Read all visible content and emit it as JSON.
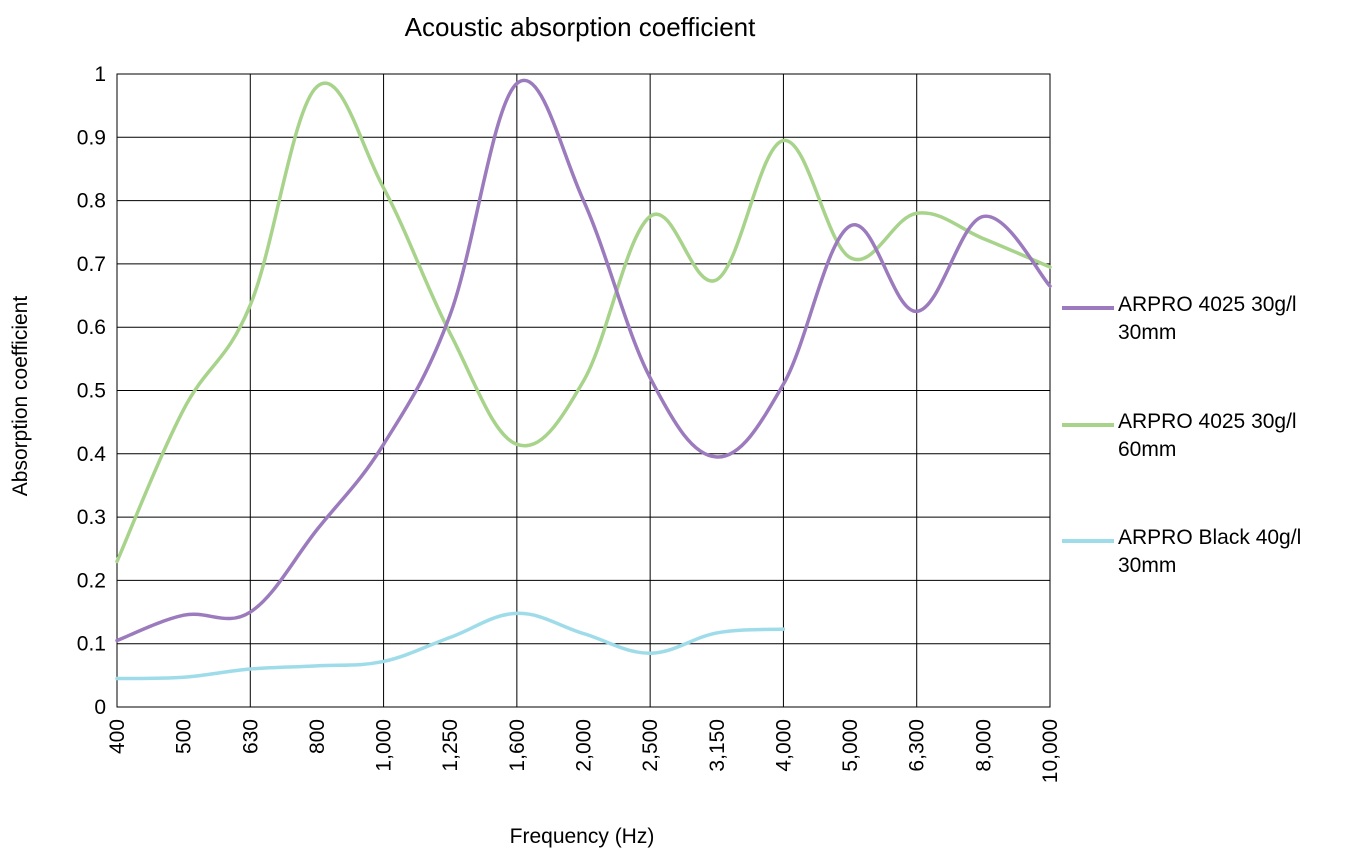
{
  "chart_data": {
    "type": "line",
    "title": "Acoustic absorption coefficient",
    "xlabel": "Frequency (Hz)",
    "ylabel": "Absorption coefficient",
    "categories": [
      "400",
      "500",
      "630",
      "800",
      "1,000",
      "1,250",
      "1,600",
      "2,000",
      "2,500",
      "3,150",
      "4,000",
      "5,000",
      "6,300",
      "8,000",
      "10,000"
    ],
    "ylim": [
      0,
      1
    ],
    "yticks": [
      "0",
      "0.1",
      "0.2",
      "0.3",
      "0.4",
      "0.5",
      "0.6",
      "0.7",
      "0.8",
      "0.9",
      "1"
    ],
    "grid": true,
    "legend_position": "right",
    "series": [
      {
        "name": "ARPRO 4025 30g/l 30mm",
        "color": "#9b7bbd",
        "values": [
          0.105,
          0.145,
          0.15,
          0.28,
          0.415,
          0.62,
          0.985,
          0.8,
          0.52,
          0.395,
          0.51,
          0.76,
          0.625,
          0.775,
          0.665
        ]
      },
      {
        "name": "ARPRO 4025 30g/l 60mm",
        "color": "#a8d38b",
        "values": [
          0.23,
          0.47,
          0.635,
          0.98,
          0.82,
          0.59,
          0.415,
          0.515,
          0.775,
          0.675,
          0.895,
          0.71,
          0.78,
          0.74,
          0.695
        ]
      },
      {
        "name": "ARPRO Black 40g/l 30mm",
        "color": "#9fdcea",
        "values": [
          0.045,
          0.047,
          0.06,
          0.065,
          0.072,
          0.11,
          0.148,
          0.116,
          0.085,
          0.117,
          0.123,
          null,
          null,
          null,
          null
        ]
      }
    ]
  },
  "legend": {
    "items": [
      {
        "line1": "ARPRO 4025 30g/l",
        "line2": "30mm",
        "color": "#9b7bbd"
      },
      {
        "line1": "ARPRO 4025 30g/l",
        "line2": "60mm",
        "color": "#a8d38b"
      },
      {
        "line1": "ARPRO Black 40g/l",
        "line2": "30mm",
        "color": "#9fdcea"
      }
    ]
  }
}
